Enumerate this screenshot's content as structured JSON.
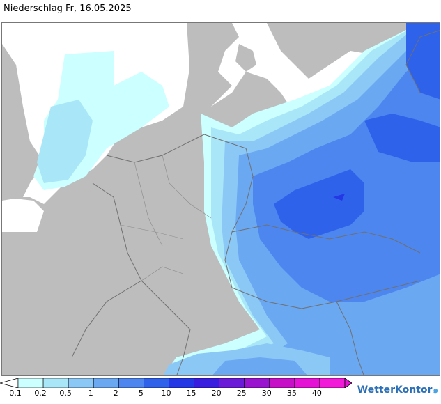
{
  "header": {
    "title": "Niederschlag Fr, 16.05.2025"
  },
  "legend": {
    "labels": [
      "0.1",
      "0.2",
      "0.5",
      "1",
      "2",
      "5",
      "10",
      "15",
      "20",
      "25",
      "30",
      "35",
      "40"
    ],
    "colors": [
      "#ffffff",
      "#ccffff",
      "#a9e6f7",
      "#8bc8f6",
      "#6aa8f2",
      "#4d86ee",
      "#2f62ea",
      "#2438e6",
      "#3a1ee0",
      "#6b1ad8",
      "#9a14d0",
      "#c80fc8",
      "#e512d6",
      "#f21ad8"
    ]
  },
  "map": {
    "land_color": "#bdbdbd",
    "sea_color": "#ffffff",
    "border_color": "#707070"
  },
  "brand": {
    "name": "WetterKontor"
  }
}
